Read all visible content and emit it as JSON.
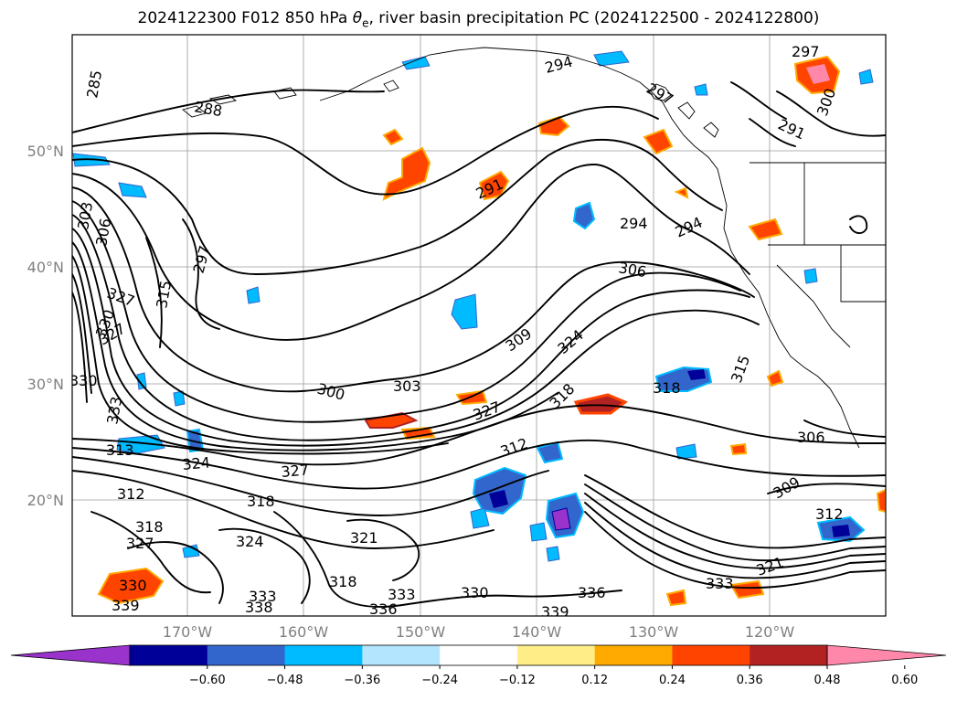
{
  "title": {
    "prefix": "2024122300 F012 850 hPa ",
    "theta": "θ",
    "sub": "e",
    "suffix": ", river basin precipitation PC (2024122500 - 2024122800)"
  },
  "axes": {
    "lon_labels": [
      "170°W",
      "160°W",
      "150°W",
      "140°W",
      "130°W",
      "120°W"
    ],
    "lat_labels": [
      "50°N",
      "40°N",
      "30°N",
      "20°N"
    ]
  },
  "contour_labels": [
    "285",
    "288",
    "294",
    "297",
    "297",
    "291",
    "300",
    "303",
    "306",
    "327",
    "315",
    "330",
    "327",
    "297",
    "330",
    "333",
    "313",
    "324",
    "327",
    "312",
    "318",
    "318",
    "327",
    "324",
    "321",
    "318",
    "333",
    "338",
    "336",
    "333",
    "330",
    "336",
    "339",
    "330",
    "339",
    "300",
    "303",
    "291",
    "294",
    "294",
    "306",
    "309",
    "324",
    "327",
    "318",
    "312",
    "318",
    "315",
    "306",
    "309",
    "312",
    "321",
    "333"
  ],
  "colorbar": {
    "ticks": [
      "−0.60",
      "−0.48",
      "−0.36",
      "−0.24",
      "−0.12",
      "0.12",
      "0.24",
      "0.36",
      "0.48",
      "0.60"
    ],
    "colors": [
      "#9933cc",
      "#000099",
      "#3366cc",
      "#00bbff",
      "#b3e5ff",
      "#ffffff",
      "#ffee88",
      "#ffaa00",
      "#ff4400",
      "#b22222",
      "#ff88aa"
    ]
  },
  "colors": {
    "blue_shade": "#00bbff",
    "dark_blue": "#3366cc",
    "orange_shade": "#ff4400",
    "pink_shade": "#ff88aa"
  }
}
